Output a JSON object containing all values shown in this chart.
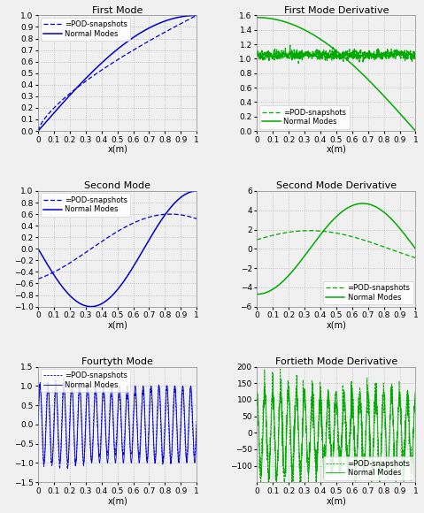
{
  "title_fontsize": 8,
  "label_fontsize": 7,
  "tick_fontsize": 6.5,
  "legend_fontsize": 6,
  "blue_color": "#0000CC",
  "green_color": "#00AA00",
  "grid_color": "#AAAAAA",
  "bg_color": "#F0F0F0",
  "subplot_titles": [
    "First Mode",
    "First Mode Derivative",
    "Second Mode",
    "Second Mode Derivative",
    "Fourtyth Mode",
    "Fortieth Mode Derivative"
  ],
  "xlabel": "x(m)",
  "legend_pod": "=POD-snapshots",
  "legend_nm": "Normal Modes",
  "xlim": [
    0,
    1
  ],
  "xticks": [
    0,
    0.1,
    0.2,
    0.3,
    0.4,
    0.5,
    0.6,
    0.7,
    0.8,
    0.9,
    1.0
  ],
  "xticklabels": [
    "0",
    "0.1",
    "0.2",
    "0.3",
    "0.4",
    "0.5",
    "0.6",
    "0.7",
    "0.8",
    "0.9",
    "1"
  ]
}
